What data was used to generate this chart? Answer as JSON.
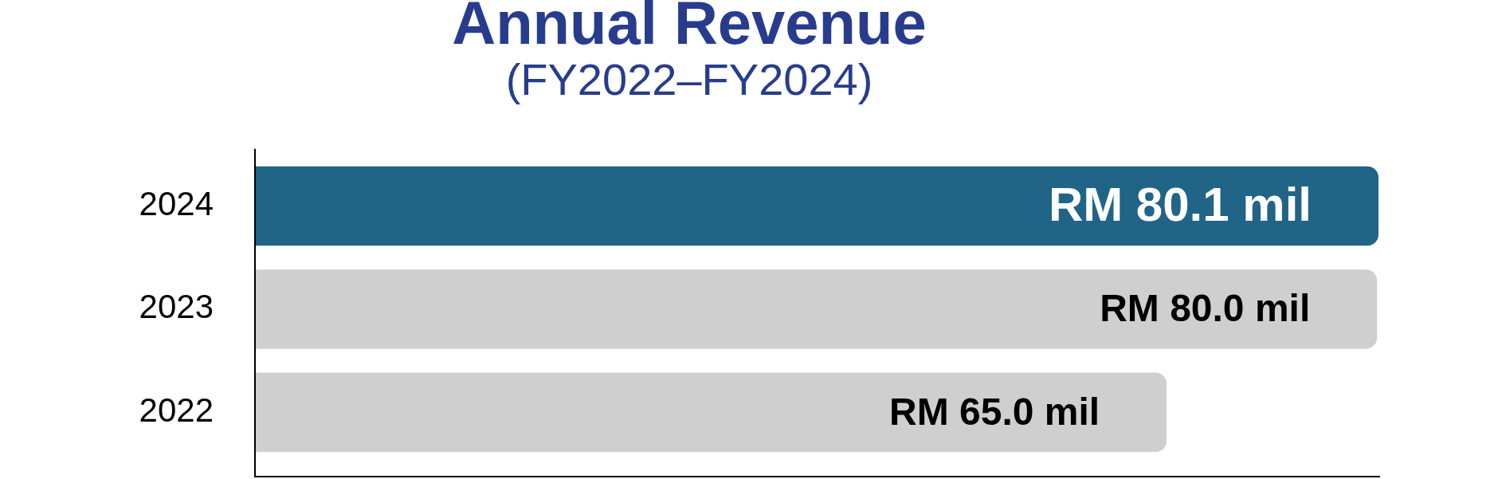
{
  "chart_data": {
    "type": "bar",
    "orientation": "horizontal",
    "title": "Annual Revenue",
    "subtitle": "(FY2022–FY2024)",
    "categories": [
      "2024",
      "2023",
      "2022"
    ],
    "values": [
      80.1,
      80.0,
      65.0
    ],
    "colors": [
      "#206487",
      "#cfcfcf",
      "#cfcfcf"
    ],
    "value_labels": [
      "RM 80.1 mil",
      "RM 80.0 mil",
      "RM 65.0 mil"
    ],
    "xlim": [
      0,
      80.1
    ],
    "tick_labels": "y"
  }
}
